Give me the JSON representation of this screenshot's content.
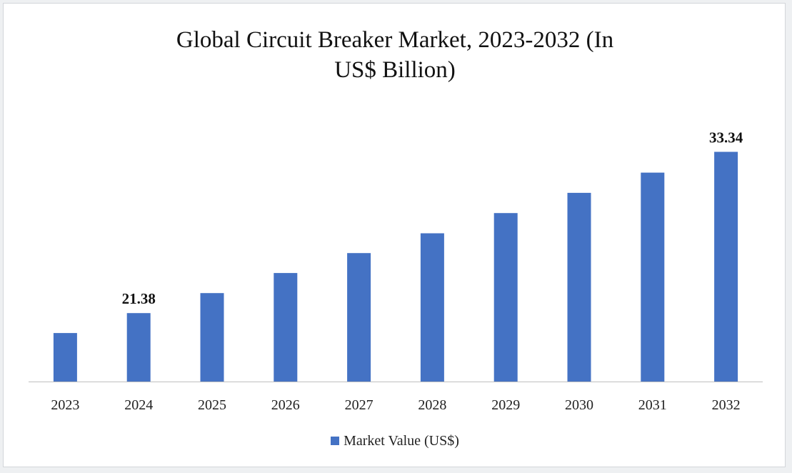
{
  "chart_data": {
    "type": "bar",
    "title_line1": "Global Circuit Breaker Market, 2023-2032 (In",
    "title_line2": "US$ Billion)",
    "categories": [
      "2023",
      "2024",
      "2025",
      "2026",
      "2027",
      "2028",
      "2029",
      "2030",
      "2031",
      "2032"
    ],
    "series": [
      {
        "name": "Market Value (US$)",
        "values": [
          19.9,
          21.38,
          22.86,
          24.35,
          25.83,
          27.3,
          28.8,
          30.3,
          31.8,
          33.34
        ],
        "data_labels": [
          "",
          "21.38",
          "",
          "",
          "",
          "",
          "",
          "",
          "",
          "33.34"
        ]
      }
    ],
    "ylim": [
      16.3,
      34.8
    ],
    "grid": false,
    "legend": "bottom",
    "colors": {
      "bar": "#4472c4",
      "axis": "#bfbfbf"
    }
  }
}
